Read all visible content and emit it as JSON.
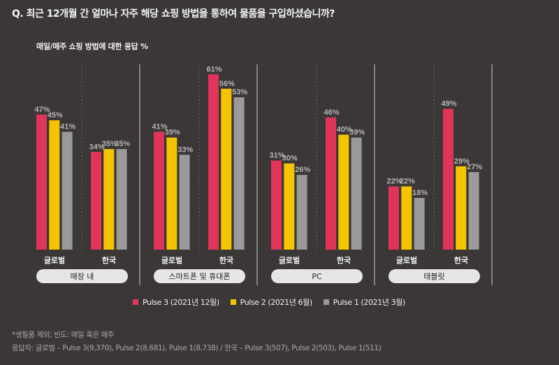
{
  "question": "Q. 최근 12개월 간 얼마나 자주 해당 쇼핑 방법을 통하여 물품을 구입하셨습니까?",
  "colors": {
    "background": "#3a3736",
    "pulse3": "#e0345a",
    "pulse2": "#f5c400",
    "pulse1": "#9a9a9a",
    "value_label": "#b4b4b4"
  },
  "chart_data": {
    "type": "bar",
    "title": "매일/매주 쇼핑 방법에 대한 응답 %",
    "unit": "%",
    "groups": [
      "매장 내",
      "스마트폰 및 휴대폰",
      "PC",
      "태블릿"
    ],
    "subcategories": [
      "글로벌",
      "한국"
    ],
    "series": [
      {
        "name": "Pulse 3 (2021년 12월)",
        "values": [
          [
            47,
            34
          ],
          [
            41,
            61
          ],
          [
            31,
            46
          ],
          [
            22,
            49
          ]
        ]
      },
      {
        "name": "Pulse 2 (2021년 6월)",
        "values": [
          [
            45,
            35
          ],
          [
            39,
            56
          ],
          [
            30,
            40
          ],
          [
            22,
            29
          ]
        ]
      },
      {
        "name": "Pulse 1 (2021년 3월)",
        "values": [
          [
            41,
            35
          ],
          [
            33,
            53
          ],
          [
            26,
            39
          ],
          [
            18,
            27
          ]
        ]
      }
    ],
    "grid": false,
    "legend_position": "bottom"
  },
  "footnotes": [
    "*생필품 제외; 빈도: 매일 혹은 매주",
    "응답자: 글로벌 – Pulse 3(9,370), Pulse 2(8,681), Pulse 1(8,738) / 한국 – Pulse 3(507), Pulse 2(503), Pulse 1(511)"
  ]
}
